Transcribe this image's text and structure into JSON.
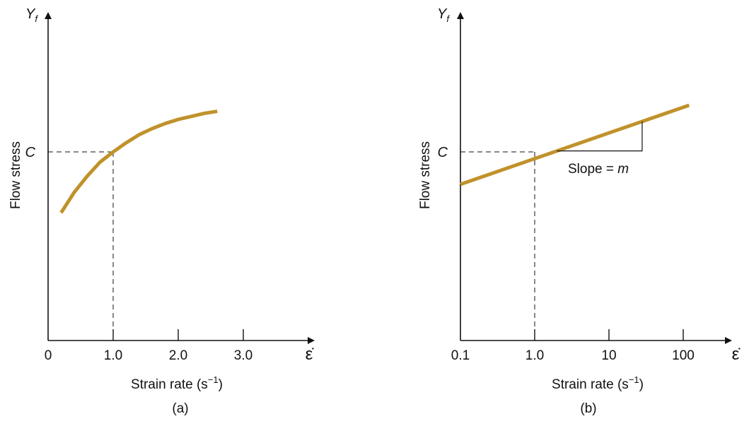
{
  "colors": {
    "curve": "#C0922B",
    "axis": "#111111"
  },
  "chart_data": [
    {
      "panel_label": "(a)",
      "type": "line",
      "ylabel": "Flow stress",
      "y_axis_symbol": {
        "var": "Y",
        "sub": "f"
      },
      "xlabel_text": "Strain rate (s",
      "xlabel_sup": "−1",
      "xlabel_close": ")",
      "x_axis_symbol": "ε̇",
      "x_scale": "linear",
      "x_ticks": [
        "0",
        "1.0",
        "2.0",
        "3.0"
      ],
      "x_tick_values": [
        0,
        1,
        2,
        3
      ],
      "x_values": [
        0.2,
        0.4,
        0.6,
        0.8,
        1.0,
        1.2,
        1.4,
        1.6,
        1.8,
        2.0,
        2.2,
        2.4,
        2.6
      ],
      "y_values": [
        0.63,
        0.73,
        0.81,
        0.88,
        0.93,
        0.975,
        1.015,
        1.045,
        1.07,
        1.09,
        1.105,
        1.12,
        1.13
      ],
      "reference": {
        "x": 1.0,
        "y": 0.93,
        "y_label": "C"
      }
    },
    {
      "panel_label": "(b)",
      "type": "line",
      "ylabel": "Flow stress",
      "y_axis_symbol": {
        "var": "Y",
        "sub": "f"
      },
      "xlabel_text": "Strain rate (s",
      "xlabel_sup": "−1",
      "xlabel_close": ")",
      "x_axis_symbol": "ε̇",
      "x_scale": "log",
      "x_ticks": [
        "0.1",
        "1.0",
        "10",
        "100"
      ],
      "x_tick_values": [
        0.1,
        1,
        10,
        100
      ],
      "x_values": [
        0.1,
        120
      ],
      "y_values": [
        0.77,
        1.16
      ],
      "reference": {
        "x": 1.0,
        "y": 0.93,
        "y_label": "C"
      },
      "annotation": "Slope = m"
    }
  ]
}
